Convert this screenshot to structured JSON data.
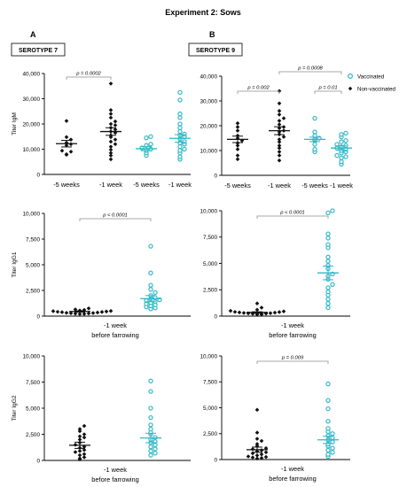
{
  "figure": {
    "title": "Experiment 2: Sows",
    "panel_a": "A",
    "panel_b": "B",
    "serotype_a": "SEROTYPE 7",
    "serotype_b": "SEROTYPE 9",
    "legend": [
      {
        "label": "Vaccinated",
        "color": "#2fb7c6"
      },
      {
        "label": "Non-vaccinated",
        "color": "#111111"
      }
    ],
    "colors": {
      "vaccinated": "#2fb7c6",
      "non_vaccinated": "#111111"
    }
  },
  "chart_data": [
    {
      "type": "scatter",
      "panel": "A",
      "ylabel": "Titer IgM",
      "ylim": [
        0,
        40000
      ],
      "yticks": [
        "0",
        "10,000",
        "20,000",
        "30,000",
        "40,000"
      ],
      "categories": [
        "-5 weeks",
        "-1 week",
        "-5 weeks",
        "-1 week"
      ],
      "groups": [
        {
          "series": "Non-vaccinated",
          "mean": 12200,
          "sem": 1300,
          "values": [
            21200,
            14800,
            13800,
            12600,
            12000,
            11500,
            9400,
            9000,
            8000,
            7800
          ]
        },
        {
          "series": "Non-vaccinated",
          "mean": 17000,
          "sem": 1500,
          "values": [
            36000,
            25500,
            24000,
            22500,
            21000,
            20000,
            19500,
            18500,
            17800,
            17000,
            16500,
            15500,
            14800,
            13800,
            13000,
            12000,
            11000,
            9800,
            8500,
            7500,
            6000
          ]
        },
        {
          "series": "Vaccinated",
          "mean": 10200,
          "sem": 800,
          "values": [
            15000,
            14500,
            12000,
            11500,
            10500,
            10000,
            9500,
            8500,
            7500
          ]
        },
        {
          "series": "Vaccinated",
          "mean": 14300,
          "sem": 1500,
          "values": [
            32500,
            29500,
            24000,
            22500,
            20000,
            18500,
            17000,
            16000,
            15500,
            15000,
            14000,
            13000,
            12500,
            12000,
            11000,
            10000,
            9500,
            8500,
            7000,
            6000
          ]
        }
      ],
      "annotations": [
        {
          "label": "p = 0.0002",
          "groups": [
            0,
            1
          ]
        }
      ]
    },
    {
      "type": "scatter",
      "panel": "B",
      "ylabel": "",
      "ylim": [
        0,
        40000
      ],
      "yticks": [
        "0",
        "10,000",
        "20,000",
        "30,000",
        "40,000"
      ],
      "categories": [
        "-5 weeks",
        "-1 week",
        "-5 weeks",
        "-1 week"
      ],
      "groups": [
        {
          "series": "Non-vaccinated",
          "mean": 14500,
          "sem": 1300,
          "values": [
            21000,
            19500,
            18000,
            16000,
            15000,
            14000,
            13000,
            12000,
            10500,
            8000,
            6500
          ]
        },
        {
          "series": "Non-vaccinated",
          "mean": 18000,
          "sem": 1600,
          "values": [
            34000,
            29000,
            26000,
            24500,
            23000,
            22000,
            20500,
            19500,
            19000,
            18000,
            17500,
            16500,
            15500,
            14500,
            13500,
            12000,
            11000,
            9500,
            8000,
            6000
          ]
        },
        {
          "series": "Vaccinated",
          "mean": 14500,
          "sem": 900,
          "values": [
            23000,
            17500,
            16000,
            15000,
            14500,
            14000,
            12500,
            10500,
            9500
          ]
        },
        {
          "series": "Vaccinated",
          "mean": 11000,
          "sem": 900,
          "values": [
            17000,
            16500,
            15500,
            14000,
            13500,
            12500,
            12000,
            11500,
            11000,
            10500,
            10000,
            9500,
            9000,
            8000,
            7500,
            7000,
            5500,
            4500
          ]
        }
      ],
      "annotations": [
        {
          "label": "p = 0.002",
          "groups": [
            0,
            1
          ]
        },
        {
          "label": "p = 0.0008",
          "groups": [
            1,
            3
          ]
        },
        {
          "label": "p = 0.01",
          "groups": [
            2,
            3
          ]
        }
      ]
    },
    {
      "type": "scatter",
      "panel": "A",
      "ylabel": "Titer IgG1",
      "ylim": [
        0,
        10000
      ],
      "yticks": [
        "0",
        "2,500",
        "5,000",
        "7,500",
        "10,000"
      ],
      "categories": [
        "-1 week",
        "before farrowing"
      ],
      "groups": [
        {
          "series": "Non-vaccinated",
          "mean": 450,
          "sem": 60,
          "values": [
            750,
            650,
            600,
            550,
            500,
            480,
            450,
            420,
            400,
            380,
            350,
            320,
            300,
            280,
            260,
            240,
            220,
            200
          ]
        },
        {
          "series": "Vaccinated",
          "mean": 1700,
          "sem": 300,
          "values": [
            6800,
            4200,
            3000,
            2600,
            2300,
            2000,
            1800,
            1700,
            1600,
            1500,
            1400,
            1300,
            1200,
            1100,
            1000,
            900,
            800,
            700
          ]
        }
      ],
      "annotations": [
        {
          "label": "p < 0.0001",
          "groups": [
            0,
            1
          ]
        }
      ]
    },
    {
      "type": "scatter",
      "panel": "B",
      "ylabel": "",
      "ylim": [
        0,
        10000
      ],
      "yticks": [
        "0",
        "2,500",
        "5,000",
        "7,500",
        "10,000"
      ],
      "categories": [
        "-1 week",
        "before farrowing"
      ],
      "groups": [
        {
          "series": "Non-vaccinated",
          "mean": 350,
          "sem": 60,
          "values": [
            1200,
            800,
            600,
            500,
            450,
            400,
            380,
            350,
            330,
            300,
            280,
            260,
            240,
            220,
            200,
            180,
            160,
            150
          ]
        },
        {
          "series": "Vaccinated",
          "mean": 4100,
          "sem": 650,
          "values": [
            10000,
            9800,
            7800,
            7400,
            6800,
            6500,
            5600,
            5200,
            4800,
            4500,
            4000,
            3800,
            3500,
            3000,
            2700,
            2300,
            2000,
            1600,
            1200,
            800
          ]
        }
      ],
      "annotations": [
        {
          "label": "p < 0.0001",
          "groups": [
            0,
            1
          ]
        }
      ]
    },
    {
      "type": "scatter",
      "panel": "A",
      "ylabel": "Titer IgG2",
      "ylim": [
        0,
        10000
      ],
      "yticks": [
        "0",
        "2,500",
        "5,000",
        "7,500",
        "10,000"
      ],
      "categories": [
        "-1 week",
        "before farrowing"
      ],
      "groups": [
        {
          "series": "Non-vaccinated",
          "mean": 1450,
          "sem": 300,
          "values": [
            3300,
            3000,
            2800,
            2500,
            2300,
            2200,
            2000,
            1700,
            1500,
            1300,
            1200,
            1000,
            900,
            800,
            600,
            500,
            300,
            200,
            100
          ]
        },
        {
          "series": "Vaccinated",
          "mean": 2150,
          "sem": 450,
          "values": [
            7600,
            6600,
            5000,
            4100,
            3400,
            3000,
            2700,
            2500,
            2200,
            2000,
            1800,
            1700,
            1500,
            1300,
            1100,
            900,
            700,
            500
          ]
        }
      ],
      "annotations": []
    },
    {
      "type": "scatter",
      "panel": "B",
      "ylabel": "",
      "ylim": [
        0,
        10000
      ],
      "yticks": [
        "0",
        "2,500",
        "5,000",
        "7,500",
        "10,000"
      ],
      "categories": [
        "-1 week",
        "before farrowing"
      ],
      "groups": [
        {
          "series": "Non-vaccinated",
          "mean": 950,
          "sem": 250,
          "values": [
            4800,
            2600,
            2000,
            1800,
            1500,
            1300,
            1100,
            1000,
            900,
            800,
            700,
            600,
            500,
            400,
            300,
            250,
            200,
            150,
            100
          ]
        },
        {
          "series": "Vaccinated",
          "mean": 1900,
          "sem": 350,
          "values": [
            7300,
            5700,
            4900,
            3700,
            3000,
            2700,
            2500,
            2300,
            2100,
            1900,
            1700,
            1500,
            1300,
            1100,
            900,
            700,
            500,
            300
          ]
        }
      ],
      "annotations": [
        {
          "label": "p = 0.009",
          "groups": [
            0,
            1
          ]
        }
      ]
    }
  ]
}
